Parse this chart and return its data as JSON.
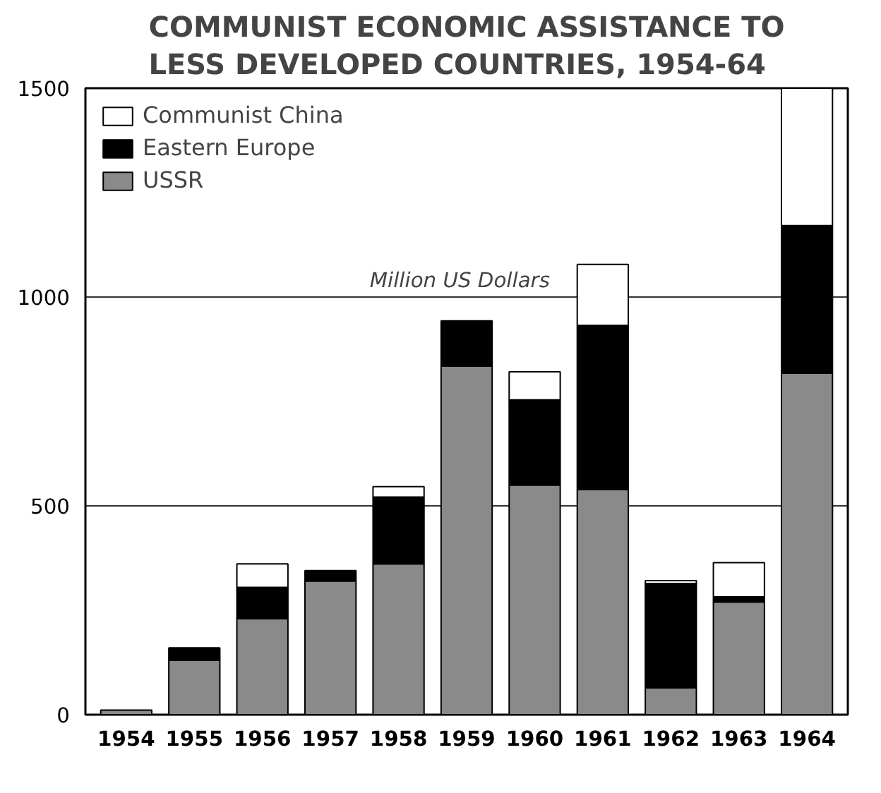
{
  "chart_data": {
    "type": "bar",
    "title": "COMMUNIST ECONOMIC ASSISTANCE TO LESS DEVELOPED COUNTRIES, 1954-64",
    "categories": [
      "1954",
      "1955",
      "1956",
      "1957",
      "1958",
      "1959",
      "1960",
      "1961",
      "1962",
      "1963",
      "1964"
    ],
    "stacked": true,
    "series": [
      {
        "name": "USSR",
        "color": "#8a8a8a",
        "values": [
          11,
          130,
          230,
          320,
          361,
          835,
          550,
          539,
          64,
          270,
          818
        ]
      },
      {
        "name": "Eastern Europe",
        "color": "#000000",
        "values": [
          0,
          30,
          75,
          25,
          160,
          108,
          204,
          393,
          250,
          12,
          353
        ]
      },
      {
        "name": "Communist China",
        "color": "#ffffff",
        "values": [
          0,
          0,
          56,
          0,
          25,
          0,
          67,
          146,
          7,
          82,
          329
        ]
      }
    ],
    "ylim": [
      0,
      1500
    ],
    "yticks": [
      0,
      500,
      1000,
      1500
    ],
    "grid": "y",
    "legend": "top left",
    "annotations": [
      "Million US Dollars"
    ]
  }
}
